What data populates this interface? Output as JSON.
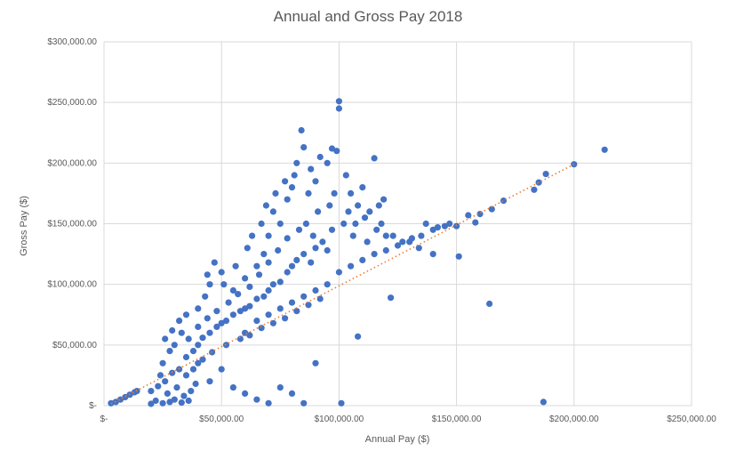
{
  "chart_data": {
    "type": "scatter",
    "title": "Annual and Gross Pay 2018",
    "xlabel": "Annual Pay ($)",
    "ylabel": "Gross Pay ($)",
    "xlim": [
      0,
      250000
    ],
    "ylim": [
      0,
      300000
    ],
    "x_ticks": [
      0,
      50000,
      100000,
      150000,
      200000,
      250000
    ],
    "y_ticks": [
      0,
      50000,
      100000,
      150000,
      200000,
      250000,
      300000
    ],
    "x_tick_labels": [
      "$-",
      "$50,000.00",
      "$100,000.00",
      "$150,000.00",
      "$200,000.00",
      "$250,000.00"
    ],
    "y_tick_labels": [
      "$-",
      "$50,000.00",
      "$100,000.00",
      "$150,000.00",
      "$200,000.00",
      "$250,000.00",
      "$300,000.00"
    ],
    "grid": true,
    "legend": "none",
    "series": [
      {
        "marker_color": "#4472c4",
        "points": [
          [
            3000,
            2000
          ],
          [
            5000,
            3000
          ],
          [
            7000,
            5000
          ],
          [
            9000,
            7000
          ],
          [
            11000,
            9000
          ],
          [
            13000,
            11000
          ],
          [
            14000,
            12000
          ],
          [
            20000,
            1500
          ],
          [
            22000,
            4000
          ],
          [
            25000,
            2000
          ],
          [
            28000,
            3000
          ],
          [
            30000,
            5000
          ],
          [
            33000,
            2500
          ],
          [
            36000,
            4000
          ],
          [
            20000,
            12000
          ],
          [
            23000,
            16000
          ],
          [
            26000,
            20000
          ],
          [
            29000,
            27000
          ],
          [
            32000,
            30000
          ],
          [
            35000,
            40000
          ],
          [
            38000,
            45000
          ],
          [
            40000,
            50000
          ],
          [
            42000,
            56000
          ],
          [
            45000,
            60000
          ],
          [
            48000,
            65000
          ],
          [
            50000,
            68000
          ],
          [
            52000,
            70000
          ],
          [
            55000,
            75000
          ],
          [
            58000,
            78000
          ],
          [
            60000,
            80000
          ],
          [
            62000,
            82000
          ],
          [
            65000,
            88000
          ],
          [
            68000,
            90000
          ],
          [
            70000,
            95000
          ],
          [
            72000,
            100000
          ],
          [
            75000,
            102000
          ],
          [
            78000,
            110000
          ],
          [
            80000,
            115000
          ],
          [
            82000,
            120000
          ],
          [
            85000,
            125000
          ],
          [
            88000,
            118000
          ],
          [
            90000,
            130000
          ],
          [
            95000,
            128000
          ],
          [
            100000,
            110000
          ],
          [
            105000,
            115000
          ],
          [
            110000,
            120000
          ],
          [
            115000,
            125000
          ],
          [
            120000,
            128000
          ],
          [
            125000,
            132000
          ],
          [
            130000,
            135000
          ],
          [
            135000,
            140000
          ],
          [
            140000,
            145000
          ],
          [
            145000,
            148000
          ],
          [
            32000,
            70000
          ],
          [
            35000,
            75000
          ],
          [
            40000,
            80000
          ],
          [
            43000,
            90000
          ],
          [
            45000,
            100000
          ],
          [
            50000,
            110000
          ],
          [
            55000,
            95000
          ],
          [
            60000,
            105000
          ],
          [
            65000,
            115000
          ],
          [
            68000,
            125000
          ],
          [
            70000,
            140000
          ],
          [
            72000,
            160000
          ],
          [
            75000,
            150000
          ],
          [
            78000,
            170000
          ],
          [
            80000,
            180000
          ],
          [
            82000,
            200000
          ],
          [
            84000,
            227000
          ],
          [
            85000,
            213000
          ],
          [
            88000,
            195000
          ],
          [
            90000,
            185000
          ],
          [
            92000,
            205000
          ],
          [
            95000,
            200000
          ],
          [
            97000,
            212000
          ],
          [
            99000,
            210000
          ],
          [
            100000,
            251000
          ],
          [
            100000,
            245000
          ],
          [
            103000,
            190000
          ],
          [
            105000,
            175000
          ],
          [
            108000,
            165000
          ],
          [
            110000,
            180000
          ],
          [
            113000,
            160000
          ],
          [
            115000,
            204000
          ],
          [
            118000,
            150000
          ],
          [
            120000,
            140000
          ],
          [
            35000,
            25000
          ],
          [
            40000,
            35000
          ],
          [
            45000,
            20000
          ],
          [
            50000,
            30000
          ],
          [
            55000,
            15000
          ],
          [
            60000,
            10000
          ],
          [
            65000,
            5000
          ],
          [
            70000,
            2000
          ],
          [
            75000,
            15000
          ],
          [
            80000,
            10000
          ],
          [
            85000,
            2000
          ],
          [
            90000,
            35000
          ],
          [
            101000,
            2000
          ],
          [
            108000,
            57000
          ],
          [
            122000,
            89000
          ],
          [
            140000,
            125000
          ],
          [
            150000,
            148000
          ],
          [
            151000,
            123000
          ],
          [
            155000,
            157000
          ],
          [
            158000,
            151000
          ],
          [
            160000,
            158000
          ],
          [
            165000,
            162000
          ],
          [
            164000,
            84000
          ],
          [
            170000,
            169000
          ],
          [
            183000,
            178000
          ],
          [
            185000,
            184000
          ],
          [
            188000,
            191000
          ],
          [
            187000,
            3000
          ],
          [
            200000,
            199000
          ],
          [
            213000,
            211000
          ],
          [
            60000,
            60000
          ],
          [
            65000,
            70000
          ],
          [
            70000,
            75000
          ],
          [
            75000,
            80000
          ],
          [
            80000,
            85000
          ],
          [
            85000,
            90000
          ],
          [
            90000,
            95000
          ],
          [
            95000,
            100000
          ],
          [
            38000,
            30000
          ],
          [
            42000,
            38000
          ],
          [
            46000,
            44000
          ],
          [
            52000,
            50000
          ],
          [
            58000,
            55000
          ],
          [
            62000,
            58000
          ],
          [
            67000,
            64000
          ],
          [
            72000,
            68000
          ],
          [
            77000,
            72000
          ],
          [
            82000,
            78000
          ],
          [
            87000,
            83000
          ],
          [
            92000,
            88000
          ],
          [
            30000,
            50000
          ],
          [
            33000,
            60000
          ],
          [
            36000,
            55000
          ],
          [
            40000,
            65000
          ],
          [
            44000,
            72000
          ],
          [
            48000,
            78000
          ],
          [
            53000,
            85000
          ],
          [
            57000,
            92000
          ],
          [
            62000,
            98000
          ],
          [
            66000,
            108000
          ],
          [
            70000,
            118000
          ],
          [
            74000,
            128000
          ],
          [
            78000,
            138000
          ],
          [
            83000,
            145000
          ],
          [
            86000,
            150000
          ],
          [
            89000,
            140000
          ],
          [
            93000,
            135000
          ],
          [
            97000,
            145000
          ],
          [
            102000,
            150000
          ],
          [
            106000,
            140000
          ],
          [
            112000,
            135000
          ],
          [
            116000,
            145000
          ],
          [
            25000,
            35000
          ],
          [
            28000,
            45000
          ],
          [
            24000,
            25000
          ],
          [
            27000,
            10000
          ],
          [
            31000,
            15000
          ],
          [
            34000,
            8000
          ],
          [
            37000,
            12000
          ],
          [
            39000,
            18000
          ],
          [
            26000,
            55000
          ],
          [
            29000,
            62000
          ],
          [
            44000,
            108000
          ],
          [
            47000,
            118000
          ],
          [
            51000,
            100000
          ],
          [
            56000,
            115000
          ],
          [
            61000,
            130000
          ],
          [
            63000,
            140000
          ],
          [
            67000,
            150000
          ],
          [
            69000,
            165000
          ],
          [
            73000,
            175000
          ],
          [
            77000,
            185000
          ],
          [
            81000,
            190000
          ],
          [
            87000,
            175000
          ],
          [
            91000,
            160000
          ],
          [
            96000,
            165000
          ],
          [
            98000,
            175000
          ],
          [
            104000,
            160000
          ],
          [
            107000,
            150000
          ],
          [
            111000,
            155000
          ],
          [
            117000,
            165000
          ],
          [
            119000,
            170000
          ],
          [
            123000,
            140000
          ],
          [
            127000,
            135000
          ],
          [
            131000,
            138000
          ],
          [
            134000,
            130000
          ],
          [
            137000,
            150000
          ],
          [
            142000,
            147000
          ],
          [
            147000,
            150000
          ]
        ]
      }
    ],
    "trendline": {
      "style": "dotted",
      "color": "#ed7d31",
      "from": [
        3000,
        1500
      ],
      "to": [
        200000,
        199000
      ]
    }
  }
}
